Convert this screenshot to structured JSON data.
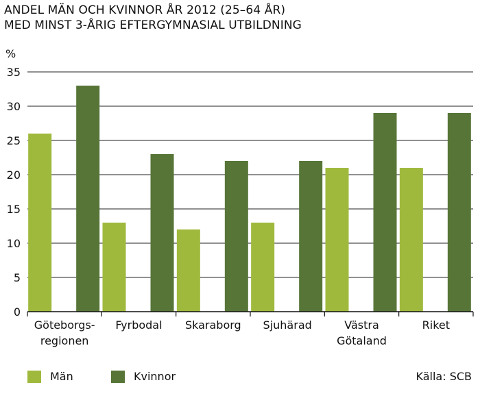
{
  "chart_data": {
    "type": "bar",
    "title": [
      "ANDEL MÄN OCH KVINNOR ÅR 2012 (25–64 ÅR)",
      "MED MINST 3-ÅRIG EFTERGYMNASIAL UTBILDNING"
    ],
    "ylabel": "%",
    "xlabel": "",
    "ylim": [
      0,
      35
    ],
    "yticks": [
      0,
      5,
      10,
      15,
      20,
      25,
      30,
      35
    ],
    "grid": true,
    "legend_position": "bottom-left",
    "categories": [
      [
        "Göteborgs-",
        "regionen"
      ],
      [
        "Fyrbodal"
      ],
      [
        "Skaraborg"
      ],
      [
        "Sjuhärad"
      ],
      [
        "Västra",
        "Götaland"
      ],
      [
        "Riket"
      ]
    ],
    "series": [
      {
        "name": "Män",
        "color": "#9fb93d",
        "values": [
          26,
          13,
          12,
          13,
          21,
          21
        ]
      },
      {
        "name": "Kvinnor",
        "color": "#567537",
        "values": [
          33,
          23,
          22,
          22,
          29,
          29
        ]
      }
    ],
    "source": "Källa: SCB"
  }
}
